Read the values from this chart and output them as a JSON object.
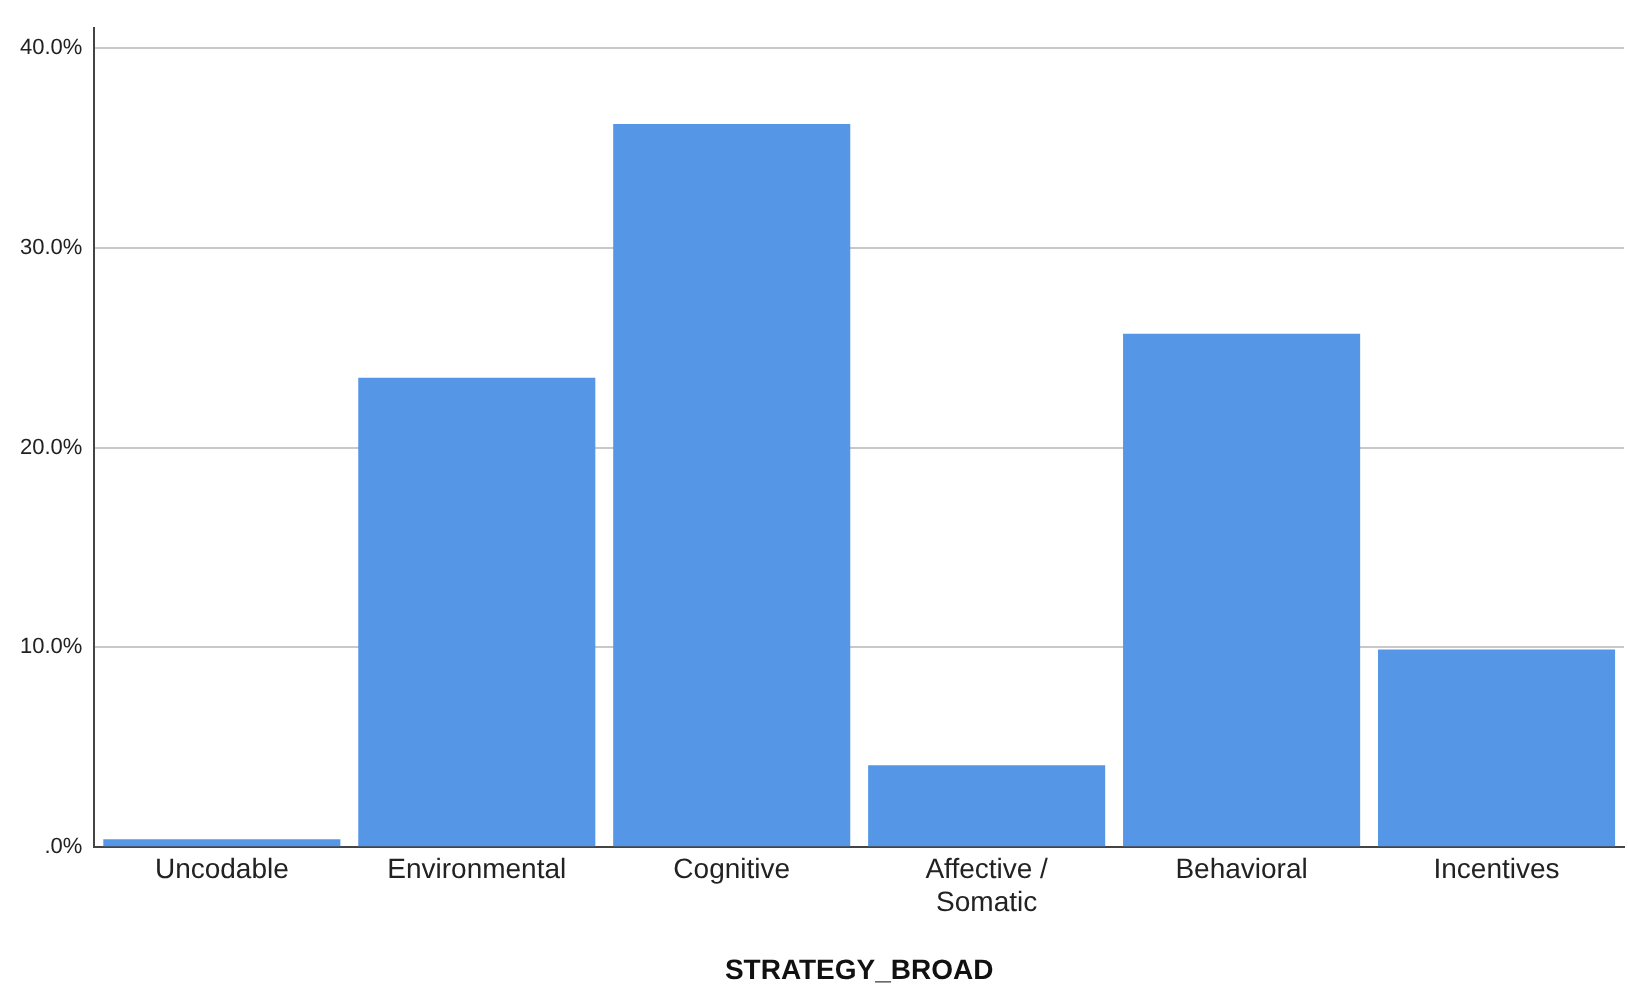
{
  "chart_data": {
    "type": "bar",
    "xlabel": "STRATEGY_BROAD",
    "categories": [
      "Uncodable",
      "Environmental",
      "Cognitive",
      "Affective /\nSomatic",
      "Behavioral",
      "Incentives"
    ],
    "values": [
      0.4,
      23.5,
      36.2,
      4.1,
      25.7,
      9.9
    ],
    "color": "#5597e6",
    "ylim": [
      0,
      41
    ],
    "yticks": [
      {
        "value": 0,
        "label": ".0%"
      },
      {
        "value": 10,
        "label": "10.0%"
      },
      {
        "value": 20,
        "label": "20.0%"
      },
      {
        "value": 30,
        "label": "30.0%"
      },
      {
        "value": 40,
        "label": "40.0%"
      }
    ],
    "grid": "y",
    "legend": false
  }
}
